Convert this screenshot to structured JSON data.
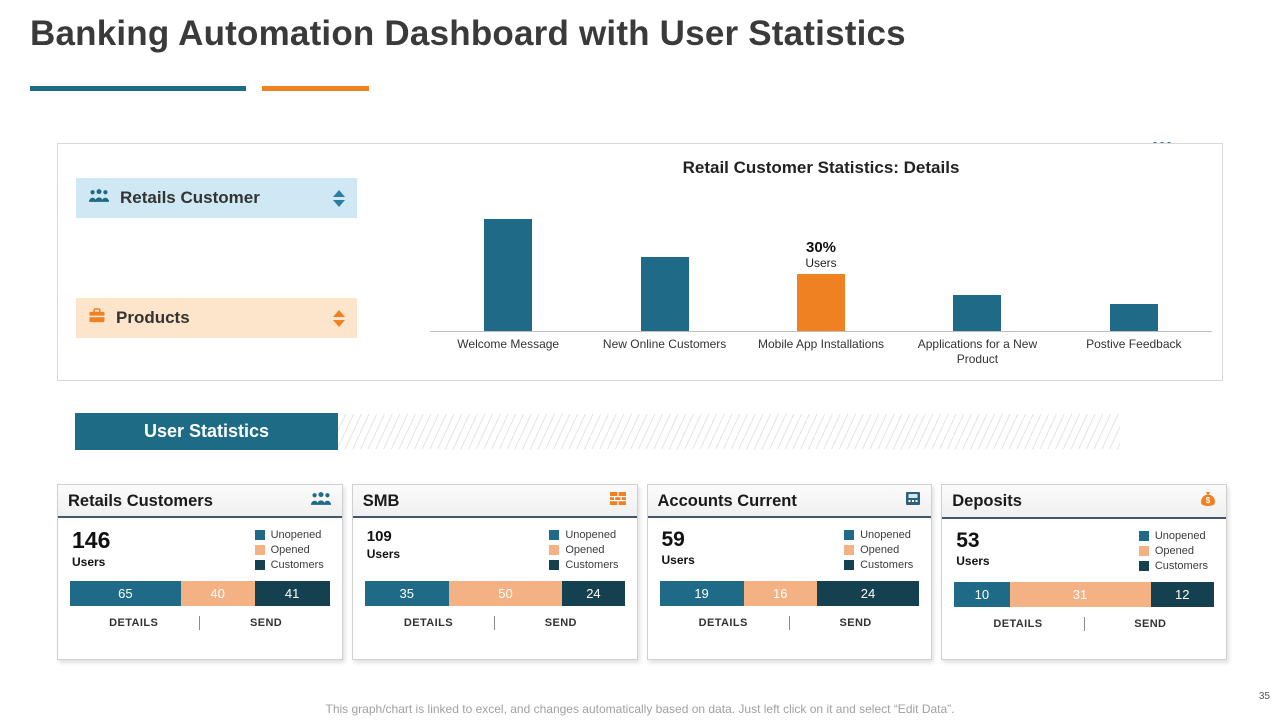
{
  "page": {
    "title": "Banking Automation Dashboard with User Statistics",
    "page_number": "35",
    "footer_note": "This graph/chart is linked to excel, and changes automatically based on data. Just left click on it and select “Edit Data”."
  },
  "panel": {
    "filters": [
      {
        "label": "Retails Customer",
        "icon": "people-icon"
      },
      {
        "label": "Products",
        "icon": "products-icon"
      }
    ]
  },
  "chart_data": {
    "type": "bar",
    "title": "Retail Customer Statistics: Details",
    "categories": [
      "Welcome Message",
      "New Online Customers",
      "Mobile App Installations",
      "Applications for a New Product",
      "Postive Feedback"
    ],
    "values": [
      59,
      39,
      30,
      19,
      14
    ],
    "unit": "%",
    "highlight_index": 2,
    "annotation": {
      "value": "30%",
      "label": "Users"
    },
    "bar_color": "#1f6a87",
    "highlight_color": "#ef8122",
    "xlabel": "",
    "ylabel": "",
    "ylim": [
      0,
      60
    ],
    "grid": false,
    "legend": "none"
  },
  "banner": {
    "label": "User Statistics"
  },
  "legend_labels": [
    "Unopened",
    "Opened",
    "Customers"
  ],
  "cards": [
    {
      "title": "Retails Customers",
      "icon": "people-icon",
      "users_value": "146",
      "users_label": "Users",
      "segments": [
        65,
        40,
        41
      ],
      "details_label": "DETAILS",
      "send_label": "SEND"
    },
    {
      "title": "SMB",
      "icon": "bricks-icon",
      "users_value": "109",
      "users_label": "Users",
      "segments": [
        35,
        50,
        24
      ],
      "details_label": "DETAILS",
      "send_label": "SEND"
    },
    {
      "title": "Accounts Current",
      "icon": "card-machine-icon",
      "users_value": "59",
      "users_label": "Users",
      "segments": [
        19,
        16,
        24
      ],
      "details_label": "DETAILS",
      "send_label": "SEND"
    },
    {
      "title": "Deposits",
      "icon": "money-bag-icon",
      "users_value": "53",
      "users_label": "Users",
      "segments": [
        10,
        31,
        12
      ],
      "details_label": "DETAILS",
      "send_label": "SEND"
    }
  ],
  "colors": {
    "teal": "#1f6a87",
    "orange": "#ef8122",
    "light_orange": "#f4b183",
    "dark_teal": "#14404f",
    "light_blue_bg": "#cfe8f4",
    "light_peach_bg": "#fde5cc"
  }
}
